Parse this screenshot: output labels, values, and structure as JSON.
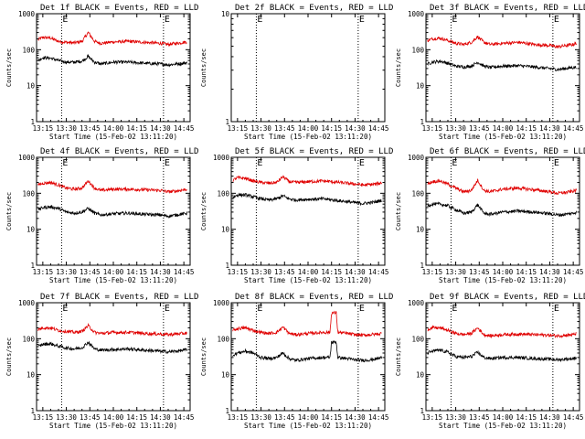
{
  "figure": {
    "x_tick_labels": [
      "13:15",
      "13:30",
      "13:45",
      "14:00",
      "14:15",
      "14:30",
      "14:45"
    ],
    "y_tick_labels": [
      "1",
      "10",
      "100",
      "1000"
    ],
    "xlabel": "Start Time (15-Feb-02 13:11:20)",
    "ylabel": "Counts/sec",
    "marker_label": "E",
    "colors": {
      "events": "#000000",
      "lld": "#e00000",
      "axis": "#000000"
    }
  },
  "chart_data": [
    {
      "type": "line",
      "panel": "1f",
      "title": "Det 1f BLACK = Events, RED = LLD",
      "xlabel": "Start Time (15-Feb-02 13:11:20)",
      "ylabel": "Counts/sec",
      "xlim": [
        "13:11",
        "14:49"
      ],
      "ylim": [
        1,
        1000
      ],
      "yscale": "log",
      "vlines": [
        "13:27",
        "14:32"
      ],
      "series": [
        {
          "key": "lld",
          "x": [
            "13:12",
            "13:15",
            "13:20",
            "13:25",
            "13:30",
            "13:35",
            "13:40",
            "13:44",
            "13:48",
            "13:52",
            "14:00",
            "14:10",
            "14:20",
            "14:30",
            "14:35",
            "14:40",
            "14:45",
            "14:47"
          ],
          "values": [
            190,
            220,
            210,
            170,
            160,
            155,
            170,
            300,
            170,
            150,
            165,
            170,
            160,
            150,
            140,
            150,
            160,
            165
          ]
        },
        {
          "key": "events",
          "x": [
            "13:12",
            "13:15",
            "13:20",
            "13:25",
            "13:30",
            "13:35",
            "13:40",
            "13:44",
            "13:48",
            "13:52",
            "14:00",
            "14:10",
            "14:20",
            "14:30",
            "14:35",
            "14:40",
            "14:45",
            "14:47"
          ],
          "values": [
            50,
            60,
            58,
            50,
            45,
            45,
            48,
            65,
            45,
            40,
            45,
            45,
            42,
            40,
            38,
            40,
            42,
            43
          ]
        }
      ]
    },
    {
      "type": "line",
      "panel": "2f",
      "title": "Det 2f BLACK = Events, RED = LLD",
      "xlabel": "Start Time (15-Feb-02 13:11:20)",
      "ylabel": "Counts/sec",
      "xlim": [
        "13:11",
        "14:49"
      ],
      "ylim": [
        1,
        10
      ],
      "yscale": "log",
      "vlines": [
        "13:27",
        "14:32"
      ],
      "series": []
    },
    {
      "type": "line",
      "panel": "3f",
      "title": "Det 3f BLACK = Events, RED = LLD",
      "xlabel": "Start Time (15-Feb-02 13:11:20)",
      "ylabel": "Counts/sec",
      "xlim": [
        "13:11",
        "14:49"
      ],
      "ylim": [
        1,
        1000
      ],
      "yscale": "log",
      "vlines": [
        "13:27",
        "14:32"
      ],
      "series": [
        {
          "key": "lld",
          "x": [
            "13:12",
            "13:15",
            "13:20",
            "13:25",
            "13:30",
            "13:35",
            "13:40",
            "13:44",
            "13:48",
            "13:52",
            "14:00",
            "14:10",
            "14:20",
            "14:30",
            "14:35",
            "14:40",
            "14:45",
            "14:47"
          ],
          "values": [
            180,
            200,
            210,
            180,
            150,
            140,
            160,
            230,
            160,
            140,
            150,
            160,
            140,
            130,
            120,
            130,
            140,
            150
          ]
        },
        {
          "key": "events",
          "x": [
            "13:12",
            "13:15",
            "13:20",
            "13:25",
            "13:30",
            "13:35",
            "13:40",
            "13:44",
            "13:48",
            "13:52",
            "14:00",
            "14:10",
            "14:20",
            "14:30",
            "14:35",
            "14:40",
            "14:45",
            "14:47"
          ],
          "values": [
            40,
            45,
            48,
            42,
            35,
            33,
            35,
            45,
            35,
            32,
            35,
            36,
            33,
            30,
            28,
            30,
            32,
            33
          ]
        }
      ]
    },
    {
      "type": "line",
      "panel": "4f",
      "title": "Det 4f BLACK = Events, RED = LLD",
      "xlabel": "Start Time (15-Feb-02 13:11:20)",
      "ylabel": "Counts/sec",
      "xlim": [
        "13:11",
        "14:49"
      ],
      "ylim": [
        1,
        1000
      ],
      "yscale": "log",
      "vlines": [
        "13:27",
        "14:32"
      ],
      "series": [
        {
          "key": "lld",
          "x": [
            "13:12",
            "13:15",
            "13:20",
            "13:25",
            "13:30",
            "13:35",
            "13:40",
            "13:44",
            "13:48",
            "13:52",
            "14:00",
            "14:10",
            "14:20",
            "14:30",
            "14:35",
            "14:40",
            "14:45",
            "14:47"
          ],
          "values": [
            170,
            190,
            200,
            170,
            140,
            130,
            140,
            220,
            140,
            120,
            130,
            130,
            125,
            120,
            110,
            115,
            125,
            130
          ]
        },
        {
          "key": "events",
          "x": [
            "13:12",
            "13:15",
            "13:20",
            "13:25",
            "13:30",
            "13:35",
            "13:40",
            "13:44",
            "13:48",
            "13:52",
            "14:00",
            "14:10",
            "14:20",
            "14:30",
            "14:35",
            "14:40",
            "14:45",
            "14:47"
          ],
          "values": [
            35,
            40,
            42,
            38,
            30,
            28,
            30,
            38,
            28,
            25,
            27,
            28,
            26,
            25,
            23,
            25,
            27,
            28
          ]
        }
      ]
    },
    {
      "type": "line",
      "panel": "5f",
      "title": "Det 5f BLACK = Events, RED = LLD",
      "xlabel": "Start Time (15-Feb-02 13:11:20)",
      "ylabel": "Counts/sec",
      "xlim": [
        "13:11",
        "14:49"
      ],
      "ylim": [
        1,
        1000
      ],
      "yscale": "log",
      "vlines": [
        "13:27",
        "14:32"
      ],
      "series": [
        {
          "key": "lld",
          "x": [
            "13:12",
            "13:15",
            "13:20",
            "13:25",
            "13:30",
            "13:35",
            "13:40",
            "13:44",
            "13:48",
            "13:52",
            "14:00",
            "14:10",
            "14:20",
            "14:30",
            "14:35",
            "14:40",
            "14:45",
            "14:47"
          ],
          "values": [
            230,
            270,
            260,
            220,
            200,
            190,
            200,
            290,
            210,
            200,
            210,
            220,
            200,
            180,
            170,
            175,
            185,
            200
          ]
        },
        {
          "key": "events",
          "x": [
            "13:12",
            "13:15",
            "13:20",
            "13:25",
            "13:30",
            "13:35",
            "13:40",
            "13:44",
            "13:48",
            "13:52",
            "14:00",
            "14:10",
            "14:20",
            "14:30",
            "14:35",
            "14:40",
            "14:45",
            "14:47"
          ],
          "values": [
            75,
            90,
            90,
            80,
            70,
            65,
            70,
            85,
            70,
            65,
            68,
            70,
            62,
            55,
            52,
            55,
            60,
            65
          ]
        }
      ]
    },
    {
      "type": "line",
      "panel": "6f",
      "title": "Det 6f BLACK = Events, RED = LLD",
      "xlabel": "Start Time (15-Feb-02 13:11:20)",
      "ylabel": "Counts/sec",
      "xlim": [
        "13:11",
        "14:49"
      ],
      "ylim": [
        1,
        1000
      ],
      "yscale": "log",
      "vlines": [
        "13:27",
        "14:32"
      ],
      "series": [
        {
          "key": "lld",
          "x": [
            "13:12",
            "13:15",
            "13:20",
            "13:25",
            "13:30",
            "13:35",
            "13:40",
            "13:44",
            "13:48",
            "13:52",
            "14:00",
            "14:10",
            "14:20",
            "14:30",
            "14:35",
            "14:40",
            "14:45",
            "14:47"
          ],
          "values": [
            180,
            210,
            220,
            180,
            140,
            110,
            120,
            230,
            120,
            110,
            130,
            140,
            125,
            110,
            100,
            105,
            115,
            120
          ]
        },
        {
          "key": "events",
          "x": [
            "13:12",
            "13:15",
            "13:20",
            "13:25",
            "13:30",
            "13:35",
            "13:40",
            "13:44",
            "13:48",
            "13:52",
            "14:00",
            "14:10",
            "14:20",
            "14:30",
            "14:35",
            "14:40",
            "14:45",
            "14:47"
          ],
          "values": [
            45,
            50,
            50,
            45,
            35,
            28,
            30,
            48,
            28,
            26,
            30,
            32,
            30,
            27,
            25,
            26,
            28,
            30
          ]
        }
      ]
    },
    {
      "type": "line",
      "panel": "7f",
      "title": "Det 7f BLACK = Events, RED = LLD",
      "xlabel": "Start Time (15-Feb-02 13:11:20)",
      "ylabel": "Counts/sec",
      "xlim": [
        "13:11",
        "14:49"
      ],
      "ylim": [
        1,
        1000
      ],
      "yscale": "log",
      "vlines": [
        "13:27",
        "14:32"
      ],
      "series": [
        {
          "key": "lld",
          "x": [
            "13:12",
            "13:15",
            "13:20",
            "13:25",
            "13:30",
            "13:35",
            "13:40",
            "13:44",
            "13:48",
            "13:52",
            "14:00",
            "14:10",
            "14:20",
            "14:30",
            "14:35",
            "14:40",
            "14:45",
            "14:47"
          ],
          "values": [
            180,
            200,
            200,
            170,
            160,
            150,
            160,
            230,
            150,
            140,
            150,
            150,
            140,
            135,
            130,
            135,
            140,
            145
          ]
        },
        {
          "key": "events",
          "x": [
            "13:12",
            "13:15",
            "13:20",
            "13:25",
            "13:30",
            "13:35",
            "13:40",
            "13:44",
            "13:48",
            "13:52",
            "14:00",
            "14:10",
            "14:20",
            "14:30",
            "14:35",
            "14:40",
            "14:45",
            "14:47"
          ],
          "values": [
            60,
            70,
            72,
            62,
            55,
            52,
            56,
            80,
            52,
            48,
            50,
            52,
            48,
            45,
            43,
            45,
            48,
            50
          ]
        }
      ]
    },
    {
      "type": "line",
      "panel": "8f",
      "title": "Det 8f BLACK = Events, RED = LLD",
      "xlabel": "Start Time (15-Feb-02 13:11:20)",
      "ylabel": "Counts/sec",
      "xlim": [
        "13:11",
        "14:49"
      ],
      "ylim": [
        1,
        1000
      ],
      "yscale": "log",
      "vlines": [
        "13:27",
        "14:32"
      ],
      "series": [
        {
          "key": "lld",
          "x": [
            "13:12",
            "13:15",
            "13:20",
            "13:25",
            "13:30",
            "13:35",
            "13:40",
            "13:44",
            "13:48",
            "13:52",
            "14:00",
            "14:10",
            "14:14",
            "14:15",
            "14:18",
            "14:19",
            "14:25",
            "14:30",
            "14:35",
            "14:40",
            "14:45",
            "14:47"
          ],
          "values": [
            170,
            190,
            200,
            170,
            150,
            140,
            150,
            210,
            140,
            130,
            140,
            150,
            150,
            520,
            520,
            150,
            140,
            130,
            125,
            130,
            135,
            140
          ]
        },
        {
          "key": "events",
          "x": [
            "13:12",
            "13:15",
            "13:20",
            "13:25",
            "13:30",
            "13:35",
            "13:40",
            "13:44",
            "13:48",
            "13:52",
            "14:00",
            "14:10",
            "14:14",
            "14:15",
            "14:18",
            "14:19",
            "14:25",
            "14:30",
            "14:35",
            "14:40",
            "14:45",
            "14:47"
          ],
          "values": [
            35,
            40,
            45,
            40,
            30,
            28,
            30,
            40,
            28,
            25,
            28,
            30,
            30,
            80,
            80,
            30,
            28,
            26,
            25,
            26,
            28,
            30
          ]
        }
      ]
    },
    {
      "type": "line",
      "panel": "9f",
      "title": "Det 9f BLACK = Events, RED = LLD",
      "xlabel": "Start Time (15-Feb-02 13:11:20)",
      "ylabel": "Counts/sec",
      "xlim": [
        "13:11",
        "14:49"
      ],
      "ylim": [
        1,
        1000
      ],
      "yscale": "log",
      "vlines": [
        "13:27",
        "14:32"
      ],
      "series": [
        {
          "key": "lld",
          "x": [
            "13:12",
            "13:15",
            "13:20",
            "13:25",
            "13:30",
            "13:35",
            "13:40",
            "13:44",
            "13:48",
            "13:52",
            "14:00",
            "14:10",
            "14:20",
            "14:30",
            "14:35",
            "14:40",
            "14:45",
            "14:47"
          ],
          "values": [
            180,
            200,
            200,
            170,
            140,
            130,
            140,
            200,
            130,
            120,
            130,
            135,
            130,
            125,
            120,
            125,
            130,
            135
          ]
        },
        {
          "key": "events",
          "x": [
            "13:12",
            "13:15",
            "13:20",
            "13:25",
            "13:30",
            "13:35",
            "13:40",
            "13:44",
            "13:48",
            "13:52",
            "14:00",
            "14:10",
            "14:20",
            "14:30",
            "14:35",
            "14:40",
            "14:45",
            "14:47"
          ],
          "values": [
            40,
            45,
            48,
            42,
            32,
            30,
            32,
            42,
            30,
            28,
            30,
            30,
            28,
            27,
            26,
            27,
            28,
            30
          ]
        }
      ]
    }
  ]
}
